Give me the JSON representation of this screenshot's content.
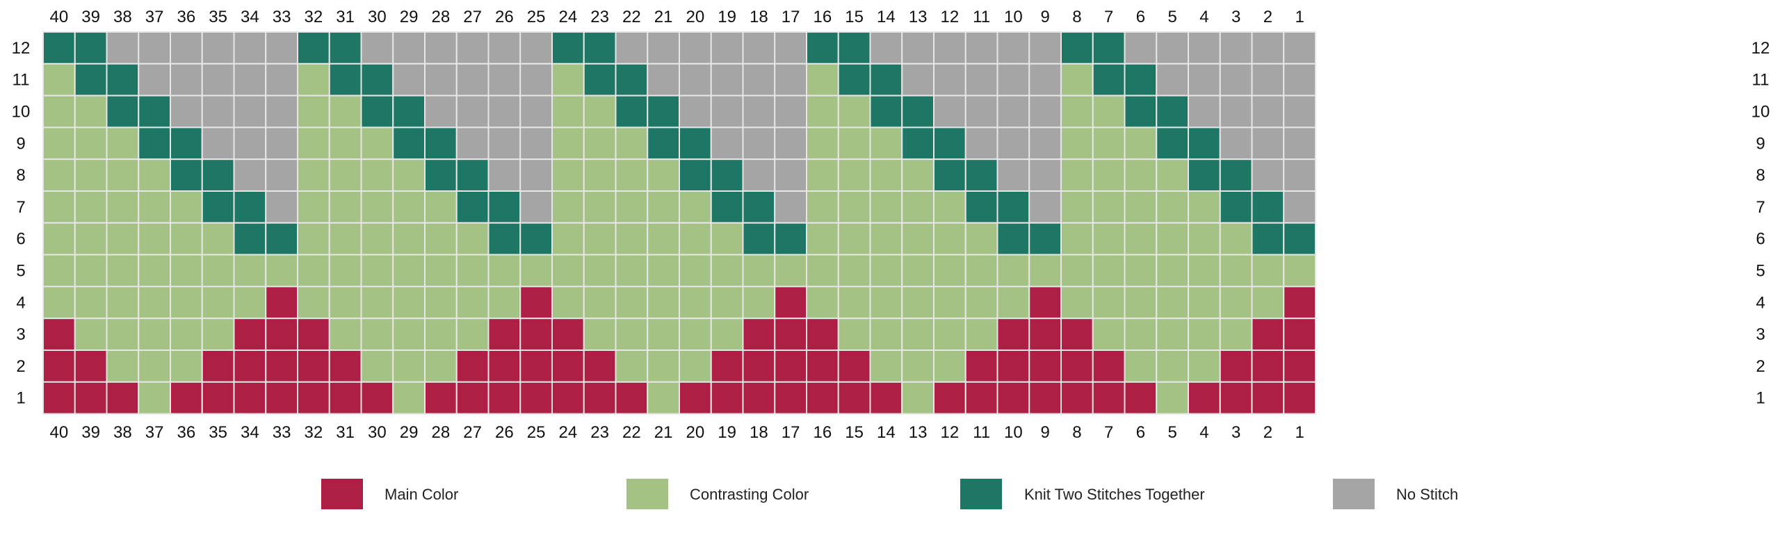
{
  "chart": {
    "type": "knitting-chart",
    "columns": 40,
    "rows": 12,
    "column_labels_left_to_right": [
      "40",
      "39",
      "38",
      "37",
      "36",
      "35",
      "34",
      "33",
      "32",
      "31",
      "30",
      "29",
      "28",
      "27",
      "26",
      "25",
      "24",
      "23",
      "22",
      "21",
      "20",
      "19",
      "18",
      "17",
      "16",
      "15",
      "14",
      "13",
      "12",
      "11",
      "10",
      "9",
      "8",
      "7",
      "6",
      "5",
      "4",
      "3",
      "2",
      "1"
    ],
    "row_labels_top_to_bottom": [
      "12",
      "11",
      "10",
      "9",
      "8",
      "7",
      "6",
      "5",
      "4",
      "3",
      "2",
      "1"
    ],
    "colors": {
      "M": "#ad1f44",
      "C": "#a4c283",
      "K": "#1e7765",
      "N": "#a5a5a5",
      "grid_line": "#e6e6e6"
    },
    "grid_rows_top_to_bottom": [
      "KKNNNNNNKKNNNNNNKKNNNNNNKKNNNNNNKKNNNNNN",
      "CKKNNNNNCKKNNNNNCKKNNNNNCKKNNNNNCKKNNNNN",
      "CCKKNNNNCCKKNNNNCCKKNNNNCCKKNNNNCCKKNNNN",
      "CCCKKNNNCCCKKNNNCCCKKNNNCCCKKNNNCCCKKNNN",
      "CCCCKKNNCCCCKKNNCCCCKKNNCCCCKKNNCCCCKKNN",
      "CCCCCKKNCCCCCKKNCCCCCKKNCCCCCKKNCCCCCKKN",
      "CCCCCCKKCCCCCCKKCCCCCCKKCCCCCCKKCCCCCCKK",
      "CCCCCCCCCCCCCCCCCCCCCCCCCCCCCCCCCCCCCCCC",
      "CCCCCCCMCCCCCCCMCCCCCCCMCCCCCCCMCCCCCCCM",
      "MCCCCCMMMCCCCCMMMCCCCCMMMCCCCCMMMCCCCCMM",
      "MMCCCMMMMMCCCMMMMMCCCMMMMMCCCMMMMMCCCMMM",
      "MMMCMMMMMMMCMMMMMMMCMMMMMMMCMMMMMMMCMMMM"
    ]
  },
  "legend": [
    {
      "key": "M",
      "label": "Main Color",
      "color": "#ad1f44"
    },
    {
      "key": "C",
      "label": "Contrasting Color",
      "color": "#a4c283"
    },
    {
      "key": "K",
      "label": "Knit Two Stitches Together",
      "color": "#1e7765"
    },
    {
      "key": "N",
      "label": "No Stitch",
      "color": "#a5a5a5"
    }
  ]
}
